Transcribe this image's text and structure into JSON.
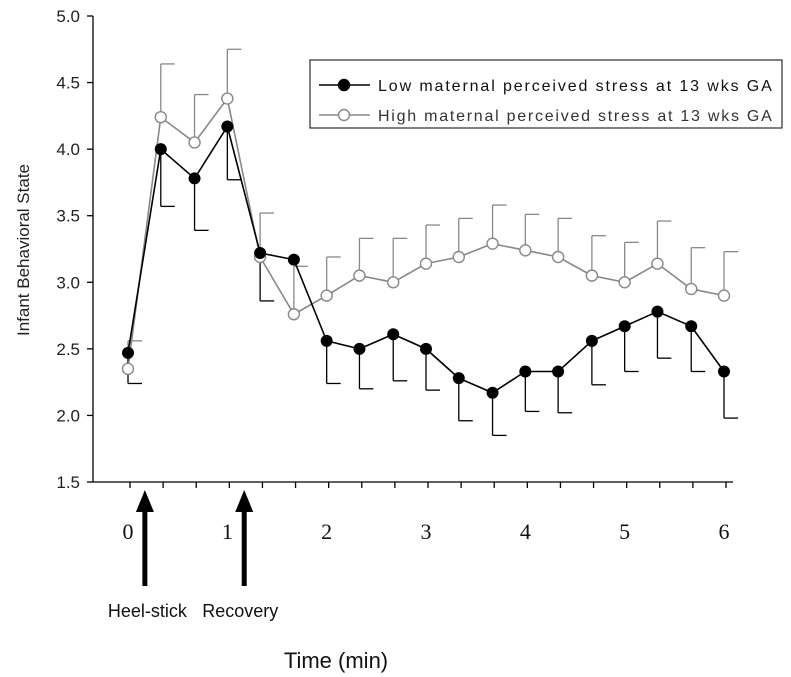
{
  "chart_data": {
    "type": "line",
    "xlabel": "Time (min)",
    "ylabel": "Infant Behavioral State",
    "ylim": [
      1.5,
      5.0
    ],
    "yticks": [
      "1.5",
      "2.0",
      "2.5",
      "3.0",
      "3.5",
      "4.0",
      "4.5",
      "5.0"
    ],
    "time_ticks": [
      "0",
      "1",
      "2",
      "3",
      "4",
      "5",
      "6"
    ],
    "time_tick_values": [
      0,
      1,
      2,
      3,
      4,
      5,
      6
    ],
    "x": [
      0,
      0.33,
      0.67,
      1,
      1.33,
      1.67,
      2,
      2.33,
      2.67,
      3,
      3.33,
      3.67,
      4,
      4.33,
      4.67,
      5,
      5.33,
      5.67,
      6
    ],
    "series": [
      {
        "name": "Low maternal perceived stress at 13 wks GA",
        "color": "#000000",
        "marker": "filled-circle",
        "values": [
          2.47,
          4.0,
          3.78,
          4.17,
          3.22,
          3.17,
          2.56,
          2.5,
          2.61,
          2.5,
          2.28,
          2.17,
          2.33,
          2.33,
          2.56,
          2.67,
          2.78,
          2.67,
          2.33
        ],
        "error_lower": [
          2.24,
          3.57,
          3.39,
          3.77,
          2.86,
          null,
          2.24,
          2.2,
          2.26,
          2.19,
          1.96,
          1.85,
          2.03,
          2.02,
          2.23,
          2.33,
          2.43,
          2.33,
          1.98
        ]
      },
      {
        "name": "High maternal perceived stress at 13 wks GA",
        "color": "#888888",
        "marker": "open-circle",
        "values": [
          2.35,
          4.24,
          4.05,
          4.38,
          3.19,
          2.76,
          2.9,
          3.05,
          3.0,
          3.14,
          3.19,
          3.29,
          3.24,
          3.19,
          3.05,
          3.0,
          3.14,
          2.95,
          2.9
        ],
        "error_upper": [
          2.56,
          4.64,
          4.41,
          4.75,
          3.52,
          3.12,
          3.19,
          3.33,
          3.33,
          3.43,
          3.48,
          3.58,
          3.51,
          3.48,
          3.35,
          3.3,
          3.46,
          3.26,
          3.23
        ]
      }
    ],
    "annotations": [
      {
        "text": "Heel-stick",
        "at_time": 0.17
      },
      {
        "text": "Recovery",
        "at_time": 1.17
      }
    ],
    "legend_position": "top-right",
    "grid": false
  }
}
